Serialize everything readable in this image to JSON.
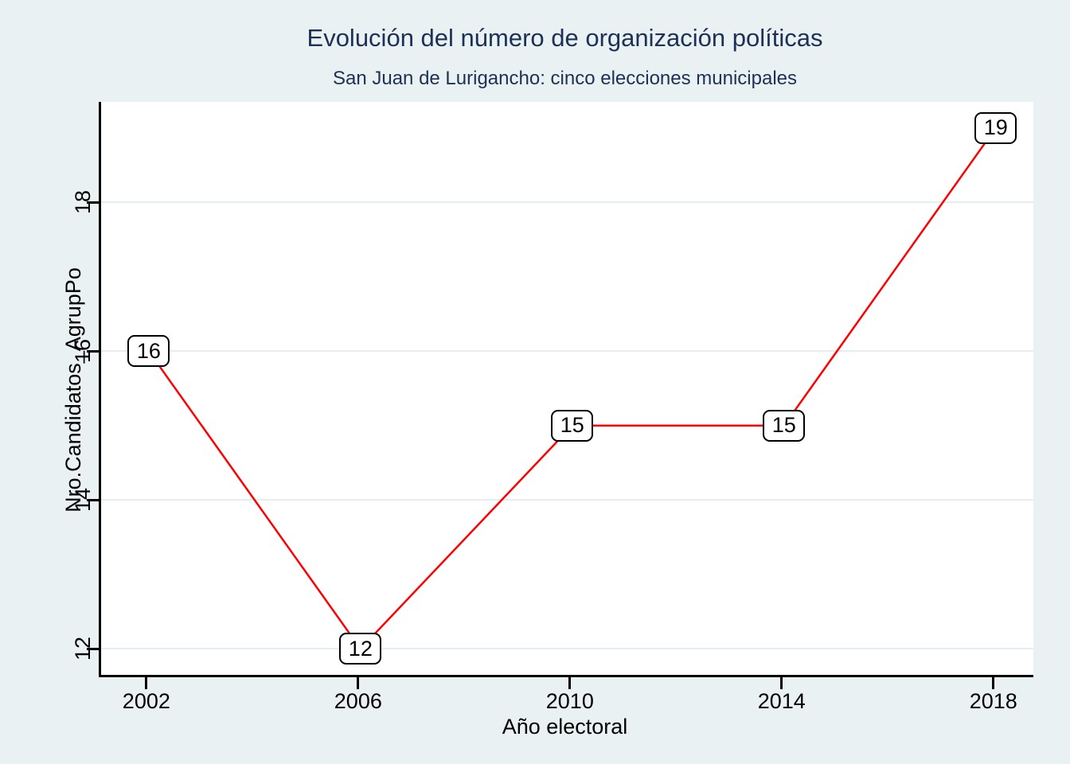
{
  "colors": {
    "background": "#eaf1f3",
    "plot_background": "#ffffff",
    "line": "#ff0000",
    "grid": "#e4edf0",
    "title_text": "#1c3155",
    "axis_text": "#000000",
    "label_box_bg": "#ffffff",
    "label_box_border": "#000000"
  },
  "chart_data": {
    "type": "line",
    "title": "Evolución del número de organización políticas",
    "subtitle": "San Juan de Lurigancho: cinco elecciones municipales",
    "x": [
      2002,
      2006,
      2010,
      2014,
      2018
    ],
    "series": [
      {
        "name": "Nro.Candidatos_AgrupPo",
        "values": [
          16,
          12,
          15,
          15,
          19
        ],
        "color": "#ff0000",
        "marker": "labeled-box"
      }
    ],
    "point_labels": [
      "16",
      "12",
      "15",
      "15",
      "19"
    ],
    "xlabel": "Año electoral",
    "ylabel": "Nro.Candidatos_AgrupPo",
    "x_ticks": [
      "2002",
      "2006",
      "2010",
      "2014",
      "2018"
    ],
    "x_tick_values": [
      2002,
      2006,
      2010,
      2014,
      2018
    ],
    "y_ticks": [
      "12",
      "14",
      "16",
      "18"
    ],
    "y_tick_values": [
      12,
      14,
      16,
      18
    ],
    "xlim": [
      2001.1,
      2018.71
    ],
    "ylim": [
      11.65,
      19.35
    ],
    "grid": "horizontal-only",
    "legend_position": "none"
  }
}
